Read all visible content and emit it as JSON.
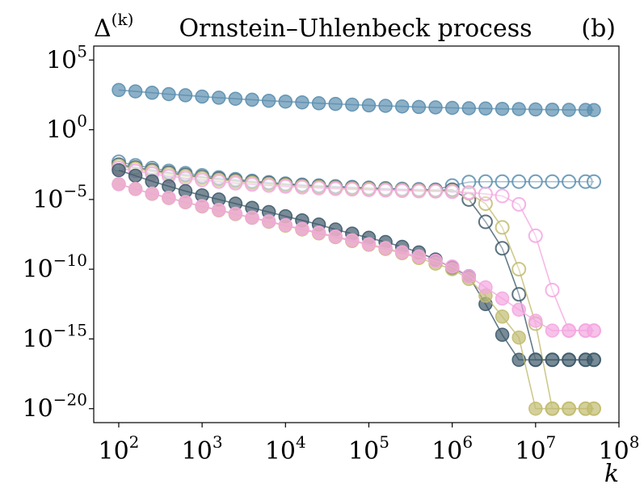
{
  "chart_data": {
    "type": "line",
    "title": "Ornstein–Uhlenbeck process",
    "panel_label": "(b)",
    "ylabel_base": "Δ",
    "ylabel_sup": "(k)",
    "xlabel": "k",
    "xscale": "log",
    "yscale": "log",
    "xlim_log10": [
      1.7,
      8.0
    ],
    "ylim_log10": [
      -21.0,
      6.0
    ],
    "x_ticks": [
      {
        "base": "10",
        "exp": "2",
        "log": 2
      },
      {
        "base": "10",
        "exp": "3",
        "log": 3
      },
      {
        "base": "10",
        "exp": "4",
        "log": 4
      },
      {
        "base": "10",
        "exp": "5",
        "log": 5
      },
      {
        "base": "10",
        "exp": "6",
        "log": 6
      },
      {
        "base": "10",
        "exp": "7",
        "log": 7
      },
      {
        "base": "10",
        "exp": "8",
        "log": 8
      }
    ],
    "y_ticks": [
      {
        "base": "10",
        "exp": "5",
        "log": 5
      },
      {
        "base": "10",
        "exp": "0",
        "log": 0
      },
      {
        "base": "10",
        "exp": "−5",
        "log": -5
      },
      {
        "base": "10",
        "exp": "−10",
        "log": -10
      },
      {
        "base": "10",
        "exp": "−15",
        "log": -15
      },
      {
        "base": "10",
        "exp": "−20",
        "log": -20
      }
    ],
    "series": [
      {
        "name": "blue-filled",
        "color": "#5b8faf",
        "filled": true,
        "x_log10": [
          2.0,
          2.2,
          2.4,
          2.6,
          2.8,
          3.0,
          3.2,
          3.4,
          3.6,
          3.8,
          4.0,
          4.2,
          4.4,
          4.6,
          4.8,
          5.0,
          5.2,
          5.4,
          5.6,
          5.8,
          6.0,
          6.2,
          6.4,
          6.6,
          6.8,
          7.0,
          7.2,
          7.4,
          7.6,
          7.7
        ],
        "y_log10": [
          2.85,
          2.75,
          2.65,
          2.55,
          2.47,
          2.38,
          2.3,
          2.22,
          2.15,
          2.08,
          2.02,
          1.96,
          1.9,
          1.85,
          1.8,
          1.75,
          1.71,
          1.67,
          1.63,
          1.6,
          1.57,
          1.54,
          1.52,
          1.5,
          1.48,
          1.46,
          1.44,
          1.43,
          1.42,
          1.41
        ]
      },
      {
        "name": "blue-open",
        "color": "#5b8faf",
        "filled": false,
        "x_log10": [
          2.0,
          2.2,
          2.4,
          2.6,
          2.8,
          3.0,
          3.2,
          3.4,
          3.6,
          3.8,
          4.0,
          4.2,
          4.4,
          4.6,
          4.8,
          5.0,
          5.2,
          5.4,
          5.6,
          5.8,
          6.0,
          6.2,
          6.4,
          6.6,
          6.8,
          7.0,
          7.2,
          7.4,
          7.6,
          7.7
        ],
        "y_log10": [
          -2.3,
          -2.55,
          -2.75,
          -2.95,
          -3.12,
          -3.27,
          -3.42,
          -3.55,
          -3.67,
          -3.77,
          -3.86,
          -3.94,
          -4.0,
          -4.06,
          -4.11,
          -4.16,
          -4.2,
          -4.24,
          -4.27,
          -4.3,
          -4.0,
          -3.75,
          -3.72,
          -3.72,
          -3.72,
          -3.72,
          -3.72,
          -3.72,
          -3.72,
          -3.72
        ]
      },
      {
        "name": "dark-open",
        "color": "#3e5a6a",
        "filled": false,
        "x_log10": [
          2.0,
          2.2,
          2.4,
          2.6,
          2.8,
          3.0,
          3.2,
          3.4,
          3.6,
          3.8,
          4.0,
          4.2,
          4.4,
          4.6,
          4.8,
          5.0,
          5.2,
          5.4,
          5.6,
          5.8,
          6.0,
          6.2,
          6.4,
          6.6,
          6.8,
          7.0,
          7.2,
          7.4,
          7.6,
          7.7
        ],
        "y_log10": [
          -2.5,
          -2.7,
          -2.9,
          -3.08,
          -3.24,
          -3.39,
          -3.52,
          -3.64,
          -3.75,
          -3.84,
          -3.93,
          -4.0,
          -4.07,
          -4.12,
          -4.17,
          -4.22,
          -4.26,
          -4.3,
          -4.33,
          -4.36,
          -4.3,
          -5.0,
          -6.6,
          -8.5,
          -11.8,
          -16.5,
          -16.5,
          -16.5,
          -16.5,
          -16.5
        ]
      },
      {
        "name": "olive-open",
        "color": "#c2bc70",
        "filled": false,
        "x_log10": [
          2.0,
          2.2,
          2.4,
          2.6,
          2.8,
          3.0,
          3.2,
          3.4,
          3.6,
          3.8,
          4.0,
          4.2,
          4.4,
          4.6,
          4.8,
          5.0,
          5.2,
          5.4,
          5.6,
          5.8,
          6.0,
          6.2,
          6.4,
          6.6,
          6.8,
          7.0,
          7.2,
          7.4,
          7.6,
          7.7
        ],
        "y_log10": [
          -2.6,
          -2.8,
          -3.0,
          -3.18,
          -3.33,
          -3.47,
          -3.6,
          -3.71,
          -3.81,
          -3.9,
          -3.98,
          -4.05,
          -4.11,
          -4.16,
          -4.21,
          -4.25,
          -4.29,
          -4.32,
          -4.35,
          -4.38,
          -4.4,
          -4.55,
          -5.3,
          -7.0,
          -10.0,
          -13.9,
          -20.0,
          -20.0,
          -20.0,
          -20.0
        ]
      },
      {
        "name": "pink-open",
        "color": "#f4a6e0",
        "filled": false,
        "x_log10": [
          2.0,
          2.2,
          2.4,
          2.6,
          2.8,
          3.0,
          3.2,
          3.4,
          3.6,
          3.8,
          4.0,
          4.2,
          4.4,
          4.6,
          4.8,
          5.0,
          5.2,
          5.4,
          5.6,
          5.8,
          6.0,
          6.2,
          6.4,
          6.6,
          6.8,
          7.0,
          7.2,
          7.4,
          7.6,
          7.7
        ],
        "y_log10": [
          -2.75,
          -2.95,
          -3.15,
          -3.32,
          -3.47,
          -3.6,
          -3.72,
          -3.83,
          -3.92,
          -4.0,
          -4.07,
          -4.13,
          -4.18,
          -4.23,
          -4.27,
          -4.31,
          -4.34,
          -4.37,
          -4.4,
          -4.42,
          -4.44,
          -4.5,
          -4.6,
          -4.75,
          -5.35,
          -7.6,
          -11.5,
          -14.4,
          -14.4,
          -14.4
        ]
      },
      {
        "name": "dark-filled",
        "color": "#3e5a6a",
        "filled": true,
        "x_log10": [
          2.0,
          2.2,
          2.4,
          2.6,
          2.8,
          3.0,
          3.2,
          3.4,
          3.6,
          3.8,
          4.0,
          4.2,
          4.4,
          4.6,
          4.8,
          5.0,
          5.2,
          5.4,
          5.6,
          5.8,
          6.0,
          6.2,
          6.4,
          6.6,
          6.8,
          7.0,
          7.2,
          7.4,
          7.6,
          7.7
        ],
        "y_log10": [
          -2.9,
          -3.3,
          -3.7,
          -4.05,
          -4.4,
          -4.7,
          -5.0,
          -5.3,
          -5.6,
          -5.9,
          -6.2,
          -6.5,
          -6.8,
          -7.15,
          -7.45,
          -7.75,
          -8.05,
          -8.4,
          -8.8,
          -9.3,
          -9.9,
          -10.5,
          -12.5,
          -14.7,
          -16.5,
          -16.5,
          -16.5,
          -16.5,
          -16.5,
          -16.5
        ]
      },
      {
        "name": "olive-filled",
        "color": "#c2bc70",
        "filled": true,
        "x_log10": [
          2.0,
          2.2,
          2.4,
          2.6,
          2.8,
          3.0,
          3.2,
          3.4,
          3.6,
          3.8,
          4.0,
          4.2,
          4.4,
          4.6,
          4.8,
          5.0,
          5.2,
          5.4,
          5.6,
          5.8,
          6.0,
          6.2,
          6.4,
          6.6,
          6.8,
          7.0,
          7.2,
          7.4,
          7.6,
          7.7
        ],
        "y_log10": [
          -3.9,
          -4.25,
          -4.6,
          -4.9,
          -5.2,
          -5.5,
          -5.78,
          -6.05,
          -6.32,
          -6.6,
          -6.88,
          -7.15,
          -7.43,
          -7.7,
          -7.98,
          -8.25,
          -8.55,
          -8.85,
          -9.2,
          -9.6,
          -10.0,
          -10.7,
          -11.9,
          -13.4,
          -14.9,
          -20.0,
          -20.0,
          -20.0,
          -20.0,
          -20.0
        ]
      },
      {
        "name": "pink-filled",
        "color": "#f4a6e0",
        "filled": true,
        "x_log10": [
          2.0,
          2.2,
          2.4,
          2.6,
          2.8,
          3.0,
          3.2,
          3.4,
          3.6,
          3.8,
          4.0,
          4.2,
          4.4,
          4.6,
          4.8,
          5.0,
          5.2,
          5.4,
          5.6,
          5.8,
          6.0,
          6.2,
          6.4,
          6.6,
          6.8,
          7.0,
          7.2,
          7.4,
          7.6,
          7.7
        ],
        "y_log10": [
          -3.9,
          -4.25,
          -4.58,
          -4.88,
          -5.18,
          -5.47,
          -5.75,
          -6.02,
          -6.3,
          -6.57,
          -6.84,
          -7.11,
          -7.38,
          -7.65,
          -7.92,
          -8.2,
          -8.48,
          -8.78,
          -9.08,
          -9.4,
          -9.8,
          -10.5,
          -11.3,
          -12.1,
          -12.9,
          -13.7,
          -14.4,
          -14.4,
          -14.4,
          -14.4
        ]
      }
    ]
  }
}
